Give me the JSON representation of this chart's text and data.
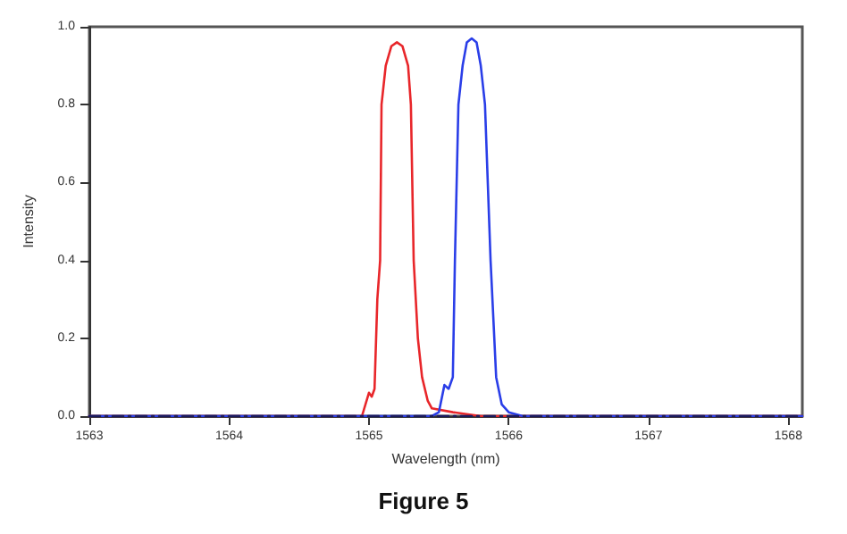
{
  "chart_data": {
    "type": "line",
    "xlabel": "Wavelength (nm)",
    "ylabel": "Intensity",
    "annotations": [
      "Figure 5"
    ],
    "xlim": [
      1563,
      1568.1
    ],
    "xticks": [
      1563,
      1564,
      1565,
      1566,
      1567,
      1568
    ],
    "ylim": [
      0,
      1
    ],
    "yticks": [
      {
        "value": 0,
        "label": "0.0"
      },
      {
        "value": 0.2,
        "label": "0.2"
      },
      {
        "value": 0.4,
        "label": "0.4"
      },
      {
        "value": 0.6,
        "label": "0.6"
      },
      {
        "value": 0.8,
        "label": "0.8"
      },
      {
        "value": 1,
        "label": "1.0"
      }
    ],
    "grid": false,
    "marker": "none",
    "series": [
      {
        "color": "#1a1a5e",
        "line_style": "dashed",
        "x": [
          1563,
          1568.1
        ],
        "values": [
          0,
          0
        ]
      },
      {
        "color": "#e8262a",
        "line_style": "solid",
        "x": [
          1563,
          1564.95,
          1565.0,
          1565.02,
          1565.04,
          1565.06,
          1565.08,
          1565.09,
          1565.12,
          1565.16,
          1565.2,
          1565.24,
          1565.28,
          1565.3,
          1565.32,
          1565.35,
          1565.38,
          1565.42,
          1565.45,
          1565.6,
          1565.8,
          1568.1
        ],
        "values": [
          0,
          0,
          0.06,
          0.05,
          0.07,
          0.3,
          0.4,
          0.8,
          0.9,
          0.95,
          0.96,
          0.95,
          0.9,
          0.8,
          0.4,
          0.2,
          0.1,
          0.04,
          0.02,
          0.01,
          0,
          0
        ]
      },
      {
        "color": "#2a3ee8",
        "line_style": "solid",
        "x": [
          1563,
          1565.45,
          1565.5,
          1565.54,
          1565.57,
          1565.6,
          1565.615,
          1565.64,
          1565.67,
          1565.7,
          1565.735,
          1565.77,
          1565.8,
          1565.83,
          1565.87,
          1565.91,
          1565.95,
          1566.0,
          1566.1,
          1568.1
        ],
        "values": [
          0,
          0,
          0.01,
          0.08,
          0.07,
          0.1,
          0.4,
          0.8,
          0.9,
          0.96,
          0.97,
          0.96,
          0.9,
          0.8,
          0.4,
          0.1,
          0.03,
          0.01,
          0,
          0
        ]
      }
    ]
  }
}
